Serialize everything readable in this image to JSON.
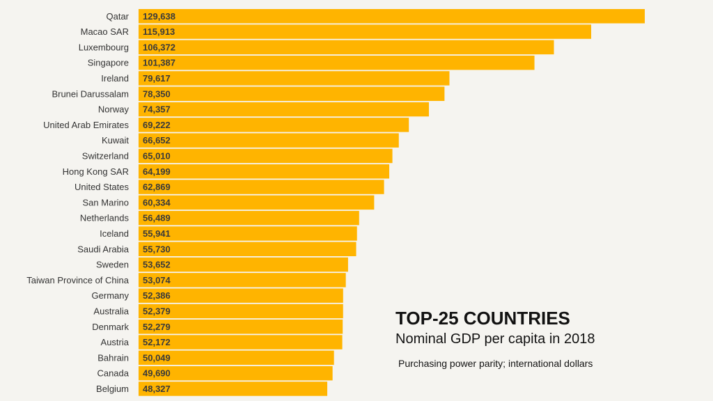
{
  "chart_data": {
    "type": "bar",
    "orientation": "horizontal",
    "title": "TOP-25 COUNTRIES",
    "subtitle": "Nominal GDP per capita in 2018",
    "note": "Purchasing power parity; international dollars",
    "categories": [
      "Qatar",
      "Macao SAR",
      "Luxembourg",
      "Singapore",
      "Ireland",
      "Brunei Darussalam",
      "Norway",
      "United Arab Emirates",
      "Kuwait",
      "Switzerland",
      "Hong Kong SAR",
      "United States",
      "San Marino",
      "Netherlands",
      "Iceland",
      "Saudi Arabia",
      "Sweden",
      "Taiwan Province of China",
      "Germany",
      "Australia",
      "Denmark",
      "Austria",
      "Bahrain",
      "Canada",
      "Belgium"
    ],
    "values": [
      129638,
      115913,
      106372,
      101387,
      79617,
      78350,
      74357,
      69222,
      66652,
      65010,
      64199,
      62869,
      60334,
      56489,
      55941,
      55730,
      53652,
      53074,
      52386,
      52379,
      52279,
      52172,
      50049,
      49690,
      48327
    ],
    "value_labels": [
      "129,638",
      "115,913",
      "106,372",
      "101,387",
      "79,617",
      "78,350",
      "74,357",
      "69,222",
      "66,652",
      "65,010",
      "64,199",
      "62,869",
      "60,334",
      "56,489",
      "55,941",
      "55,730",
      "53,652",
      "53,074",
      "52,386",
      "52,379",
      "52,279",
      "52,172",
      "50,049",
      "49,690",
      "48,327"
    ],
    "xlim": [
      0,
      129638
    ],
    "bar_color": "#ffb400",
    "grid": false,
    "legend": "none"
  }
}
